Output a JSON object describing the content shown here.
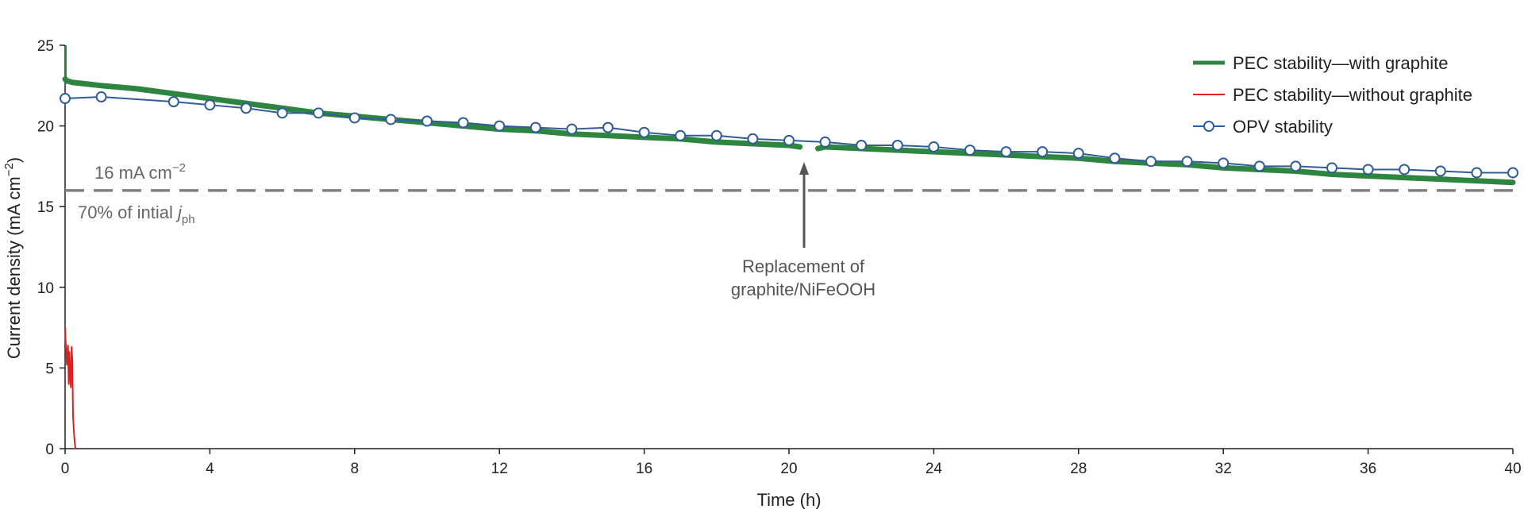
{
  "chart_data": {
    "type": "line",
    "xlabel": "Time (h)",
    "ylabel": "Current density (mA cm",
    "ylabel_sup": "−2",
    "ylabel_close": ")",
    "xlim": [
      0,
      40
    ],
    "ylim": [
      0,
      25
    ],
    "x_ticks": [
      "0",
      "4",
      "8",
      "12",
      "16",
      "20",
      "24",
      "28",
      "32",
      "36",
      "40"
    ],
    "y_ticks": [
      "0",
      "5",
      "10",
      "15",
      "20",
      "25"
    ],
    "grid": false,
    "legend_position": "top-right",
    "series": [
      {
        "name": "PEC stability—with graphite",
        "color": "#2e8540",
        "segments": [
          {
            "x": [
              0,
              0.05,
              0.2,
              1,
              2,
              3,
              4,
              5,
              6,
              7,
              8,
              9,
              10,
              11,
              12,
              13,
              14,
              15,
              16,
              17,
              18,
              19,
              20,
              20.3
            ],
            "y": [
              22.9,
              22.8,
              22.7,
              22.5,
              22.3,
              22.0,
              21.7,
              21.4,
              21.1,
              20.8,
              20.6,
              20.4,
              20.2,
              20.0,
              19.8,
              19.7,
              19.5,
              19.4,
              19.3,
              19.2,
              19.0,
              18.9,
              18.8,
              18.7
            ]
          },
          {
            "x": [
              20.8,
              21,
              22,
              23,
              24,
              25,
              26,
              27,
              28,
              29,
              30,
              31,
              32,
              33,
              34,
              35,
              36,
              37,
              38,
              39,
              40
            ],
            "y": [
              18.6,
              18.7,
              18.6,
              18.5,
              18.4,
              18.3,
              18.2,
              18.1,
              18.0,
              17.8,
              17.7,
              17.6,
              17.4,
              17.3,
              17.2,
              17.0,
              16.9,
              16.8,
              16.7,
              16.6,
              16.5
            ]
          }
        ]
      },
      {
        "name": "PEC stability—without graphite",
        "color": "#e02020",
        "segments": [
          {
            "x": [
              0,
              0.02,
              0.05,
              0.08,
              0.1,
              0.12,
              0.14,
              0.16,
              0.18,
              0.2,
              0.22,
              0.25,
              0.28,
              0.3
            ],
            "y": [
              7.5,
              6.5,
              5.2,
              6.4,
              4.0,
              6.0,
              4.5,
              3.8,
              6.3,
              5.5,
              2.0,
              0.8,
              0.1,
              0
            ]
          }
        ]
      },
      {
        "name": "OPV stability",
        "color": "#2f5d9a",
        "marker": "circle",
        "x": [
          0,
          1,
          3,
          4,
          5,
          6,
          7,
          8,
          9,
          10,
          11,
          12,
          13,
          14,
          15,
          16,
          17,
          18,
          19,
          20,
          21,
          22,
          23,
          24,
          25,
          26,
          27,
          28,
          29,
          30,
          31,
          32,
          33,
          34,
          35,
          36,
          37,
          38,
          39,
          40
        ],
        "y": [
          21.7,
          21.8,
          21.5,
          21.3,
          21.1,
          20.8,
          20.8,
          20.5,
          20.4,
          20.3,
          20.2,
          20.0,
          19.9,
          19.8,
          19.9,
          19.6,
          19.4,
          19.4,
          19.2,
          19.1,
          19.0,
          18.8,
          18.8,
          18.7,
          18.5,
          18.4,
          18.4,
          18.3,
          18.0,
          17.8,
          17.8,
          17.7,
          17.5,
          17.5,
          17.4,
          17.3,
          17.3,
          17.2,
          17.1,
          17.1
        ]
      }
    ],
    "reference_line": {
      "y": 16,
      "color": "#808080"
    },
    "annotations": {
      "ref_value": "16 mA cm",
      "ref_value_sup": "−2",
      "ref_percent": "70% of intial ",
      "ref_percent_italic": "j",
      "ref_percent_sub": "ph",
      "replacement_line1": "Replacement of",
      "replacement_line2": "graphite/NiFeOOH",
      "arrow_x": 20.5
    }
  }
}
